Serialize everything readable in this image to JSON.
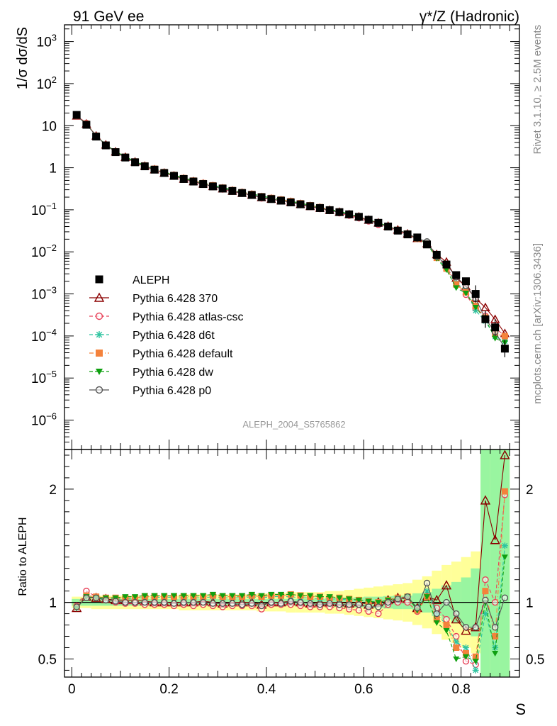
{
  "header": {
    "left_label": "91 GeV ee",
    "right_label": "γ*/Z (Hadronic)"
  },
  "side_labels": {
    "rivet": "Rivet 3.1.10, ≥ 2.5M events",
    "mcplots": "mcplots.cern.ch [arXiv:1306.3436]"
  },
  "analysis_id": "ALEPH_2004_S5765862",
  "chart_data": [
    {
      "type": "scatter",
      "panel": "main",
      "ylabel": "1/σ dσ/dS",
      "yscale": "log",
      "ylim": [
        2e-07,
        2500
      ],
      "xlim": [
        -0.015,
        0.92
      ],
      "y_tick_labels": [
        "10^-6",
        "10^-5",
        "10^-4",
        "10^-3",
        "10^-2",
        "10^-1",
        "1",
        "10",
        "10^2",
        "10^3"
      ],
      "legend_position": "lower-left",
      "x": [
        0.01,
        0.03,
        0.05,
        0.07,
        0.09,
        0.11,
        0.13,
        0.15,
        0.17,
        0.19,
        0.21,
        0.23,
        0.25,
        0.27,
        0.29,
        0.31,
        0.33,
        0.35,
        0.37,
        0.39,
        0.41,
        0.43,
        0.45,
        0.47,
        0.49,
        0.51,
        0.53,
        0.55,
        0.57,
        0.59,
        0.61,
        0.63,
        0.65,
        0.67,
        0.69,
        0.71,
        0.73,
        0.75,
        0.77,
        0.79,
        0.81,
        0.83,
        0.85,
        0.87,
        0.89
      ],
      "series": [
        {
          "name": "ALEPH",
          "color": "#000000",
          "marker": "square",
          "values": [
            18,
            10.5,
            5.5,
            3.4,
            2.35,
            1.75,
            1.35,
            1.08,
            0.9,
            0.75,
            0.64,
            0.54,
            0.47,
            0.41,
            0.36,
            0.32,
            0.28,
            0.25,
            0.225,
            0.2,
            0.18,
            0.165,
            0.15,
            0.135,
            0.122,
            0.11,
            0.098,
            0.088,
            0.078,
            0.068,
            0.058,
            0.049,
            0.04,
            0.032,
            0.026,
            0.022,
            0.015,
            0.0085,
            0.005,
            0.0028,
            0.002,
            0.001,
            0.00025,
            0.00016,
            5e-05
          ]
        },
        {
          "name": "Pythia 6.428 370",
          "color": "#8b0000",
          "marker": "triangle-open",
          "line": "solid"
        },
        {
          "name": "Pythia 6.428 atlas-csc",
          "color": "#e8435a",
          "marker": "circle-open",
          "line": "dashed"
        },
        {
          "name": "Pythia 6.428 d6t",
          "color": "#2ec4a0",
          "marker": "star",
          "line": "dashed"
        },
        {
          "name": "Pythia 6.428 default",
          "color": "#f4823b",
          "marker": "square",
          "line": "dashdot"
        },
        {
          "name": "Pythia 6.428 dw",
          "color": "#0fa010",
          "marker": "triangle-down",
          "line": "dashed"
        },
        {
          "name": "Pythia 6.428 p0",
          "color": "#555555",
          "marker": "circle-open",
          "line": "solid"
        }
      ]
    },
    {
      "type": "line",
      "panel": "ratio",
      "xlabel": "S",
      "ylabel": "Ratio to ALEPH",
      "ylim": [
        0.34,
        2.35
      ],
      "y_ticks": [
        0.5,
        1,
        2
      ],
      "y_tick_labels": [
        "0.5",
        "1",
        "2"
      ],
      "x_ticks": [
        0,
        0.2,
        0.4,
        0.6,
        0.8
      ],
      "x_tick_labels": [
        "0",
        "0.2",
        "0.4",
        "0.6",
        "0.8"
      ],
      "band_bins": [
        0,
        0.02,
        0.04,
        0.06,
        0.08,
        0.1,
        0.12,
        0.14,
        0.16,
        0.18,
        0.2,
        0.22,
        0.24,
        0.26,
        0.28,
        0.3,
        0.32,
        0.34,
        0.36,
        0.38,
        0.4,
        0.42,
        0.44,
        0.46,
        0.48,
        0.5,
        0.52,
        0.54,
        0.56,
        0.58,
        0.6,
        0.62,
        0.64,
        0.66,
        0.68,
        0.7,
        0.72,
        0.74,
        0.76,
        0.78,
        0.8,
        0.82,
        0.84,
        0.86,
        0.88,
        0.9
      ],
      "stat_band": [
        0.03,
        0.03,
        0.03,
        0.03,
        0.03,
        0.03,
        0.03,
        0.03,
        0.03,
        0.03,
        0.03,
        0.03,
        0.03,
        0.03,
        0.03,
        0.03,
        0.03,
        0.03,
        0.03,
        0.03,
        0.03,
        0.03,
        0.03,
        0.03,
        0.03,
        0.03,
        0.035,
        0.04,
        0.04,
        0.045,
        0.05,
        0.05,
        0.055,
        0.06,
        0.06,
        0.08,
        0.09,
        0.12,
        0.15,
        0.18,
        0.22,
        0.3,
        1.5,
        1.6,
        1.6
      ],
      "total_band": [
        0.05,
        0.05,
        0.06,
        0.06,
        0.06,
        0.06,
        0.06,
        0.06,
        0.06,
        0.06,
        0.06,
        0.07,
        0.07,
        0.07,
        0.07,
        0.07,
        0.07,
        0.07,
        0.07,
        0.08,
        0.08,
        0.08,
        0.09,
        0.09,
        0.09,
        0.09,
        0.1,
        0.1,
        0.11,
        0.12,
        0.13,
        0.14,
        0.15,
        0.16,
        0.17,
        0.2,
        0.23,
        0.28,
        0.33,
        0.36,
        0.4,
        0.45,
        1.6,
        1.7,
        1.7
      ],
      "series": [
        {
          "name": "Pythia 6.428 370",
          "values": [
            0.95,
            1.05,
            1.04,
            1.03,
            1.02,
            1.02,
            1.02,
            1.01,
            1.0,
            1.0,
            1.0,
            1.0,
            1.0,
            1.01,
            1.0,
            0.99,
            1.0,
            1.0,
            1.0,
            0.98,
            1.0,
            1.0,
            1.01,
            1.0,
            0.99,
            1.0,
            1.0,
            1.0,
            0.99,
            1.0,
            0.98,
            1.0,
            1.02,
            1.04,
            1.03,
            0.95,
            1.05,
            1.02,
            1.15,
            0.85,
            0.75,
            0.78,
            1.9,
            1.55,
            2.3
          ]
        },
        {
          "name": "Pythia 6.428 atlas-csc",
          "values": [
            0.97,
            1.1,
            1.05,
            1.02,
            1.0,
            0.99,
            0.99,
            0.98,
            0.98,
            0.98,
            0.97,
            0.98,
            0.97,
            0.98,
            0.97,
            0.96,
            0.97,
            0.97,
            0.97,
            0.94,
            0.98,
            0.98,
            0.98,
            0.97,
            0.96,
            0.96,
            0.96,
            0.95,
            0.94,
            0.93,
            0.92,
            0.9,
            0.98,
            1.0,
            1.0,
            0.92,
            1.05,
            0.95,
            0.85,
            0.7,
            0.48,
            0.45,
            1.2,
            1.0,
            1.95
          ]
        },
        {
          "name": "Pythia 6.428 d6t",
          "values": [
            0.95,
            1.05,
            1.04,
            1.03,
            1.03,
            1.03,
            1.04,
            1.04,
            1.04,
            1.05,
            1.04,
            1.04,
            1.04,
            1.04,
            1.05,
            1.04,
            1.04,
            1.04,
            1.05,
            1.04,
            1.05,
            1.05,
            1.05,
            1.04,
            1.04,
            1.03,
            1.03,
            1.03,
            1.02,
            1.02,
            1.01,
            1.0,
            1.02,
            1.03,
            1.05,
            0.93,
            1.1,
            0.9,
            0.8,
            0.65,
            0.6,
            0.4,
            0.9,
            0.6,
            1.5
          ]
        },
        {
          "name": "Pythia 6.428 default",
          "values": [
            0.96,
            1.06,
            1.05,
            1.04,
            1.04,
            1.04,
            1.04,
            1.05,
            1.05,
            1.05,
            1.05,
            1.05,
            1.05,
            1.05,
            1.06,
            1.05,
            1.05,
            1.05,
            1.06,
            1.05,
            1.06,
            1.06,
            1.07,
            1.06,
            1.05,
            1.05,
            1.04,
            1.04,
            1.03,
            1.02,
            1.01,
            1.0,
            1.02,
            1.04,
            1.05,
            0.93,
            1.05,
            0.85,
            0.8,
            0.6,
            0.55,
            0.52,
            1.1,
            0.7,
            1.98
          ]
        },
        {
          "name": "Pythia 6.428 dw",
          "values": [
            0.95,
            1.05,
            1.04,
            1.04,
            1.04,
            1.05,
            1.05,
            1.06,
            1.06,
            1.06,
            1.06,
            1.06,
            1.06,
            1.06,
            1.07,
            1.06,
            1.06,
            1.06,
            1.07,
            1.06,
            1.07,
            1.07,
            1.07,
            1.06,
            1.06,
            1.05,
            1.05,
            1.04,
            1.03,
            1.02,
            1.01,
            1.0,
            1.02,
            1.03,
            1.05,
            0.93,
            1.05,
            0.82,
            0.75,
            0.5,
            0.52,
            0.48,
            1.0,
            0.55,
            1.4
          ]
        },
        {
          "name": "Pythia 6.428 p0",
          "values": [
            0.96,
            1.04,
            1.04,
            1.02,
            1.01,
            1.0,
            1.0,
            1.0,
            1.0,
            1.0,
            0.99,
            1.0,
            1.0,
            1.0,
            0.99,
            0.99,
            0.99,
            0.98,
            0.99,
            0.97,
            1.0,
            0.99,
            1.01,
            1.0,
            0.99,
            0.98,
            0.99,
            0.98,
            0.98,
            0.98,
            0.96,
            0.96,
            1.0,
            1.03,
            1.05,
            0.95,
            1.17,
            0.9,
            1.0,
            0.9,
            0.78,
            0.78,
            1.02,
            0.78,
            1.04
          ]
        }
      ]
    }
  ]
}
